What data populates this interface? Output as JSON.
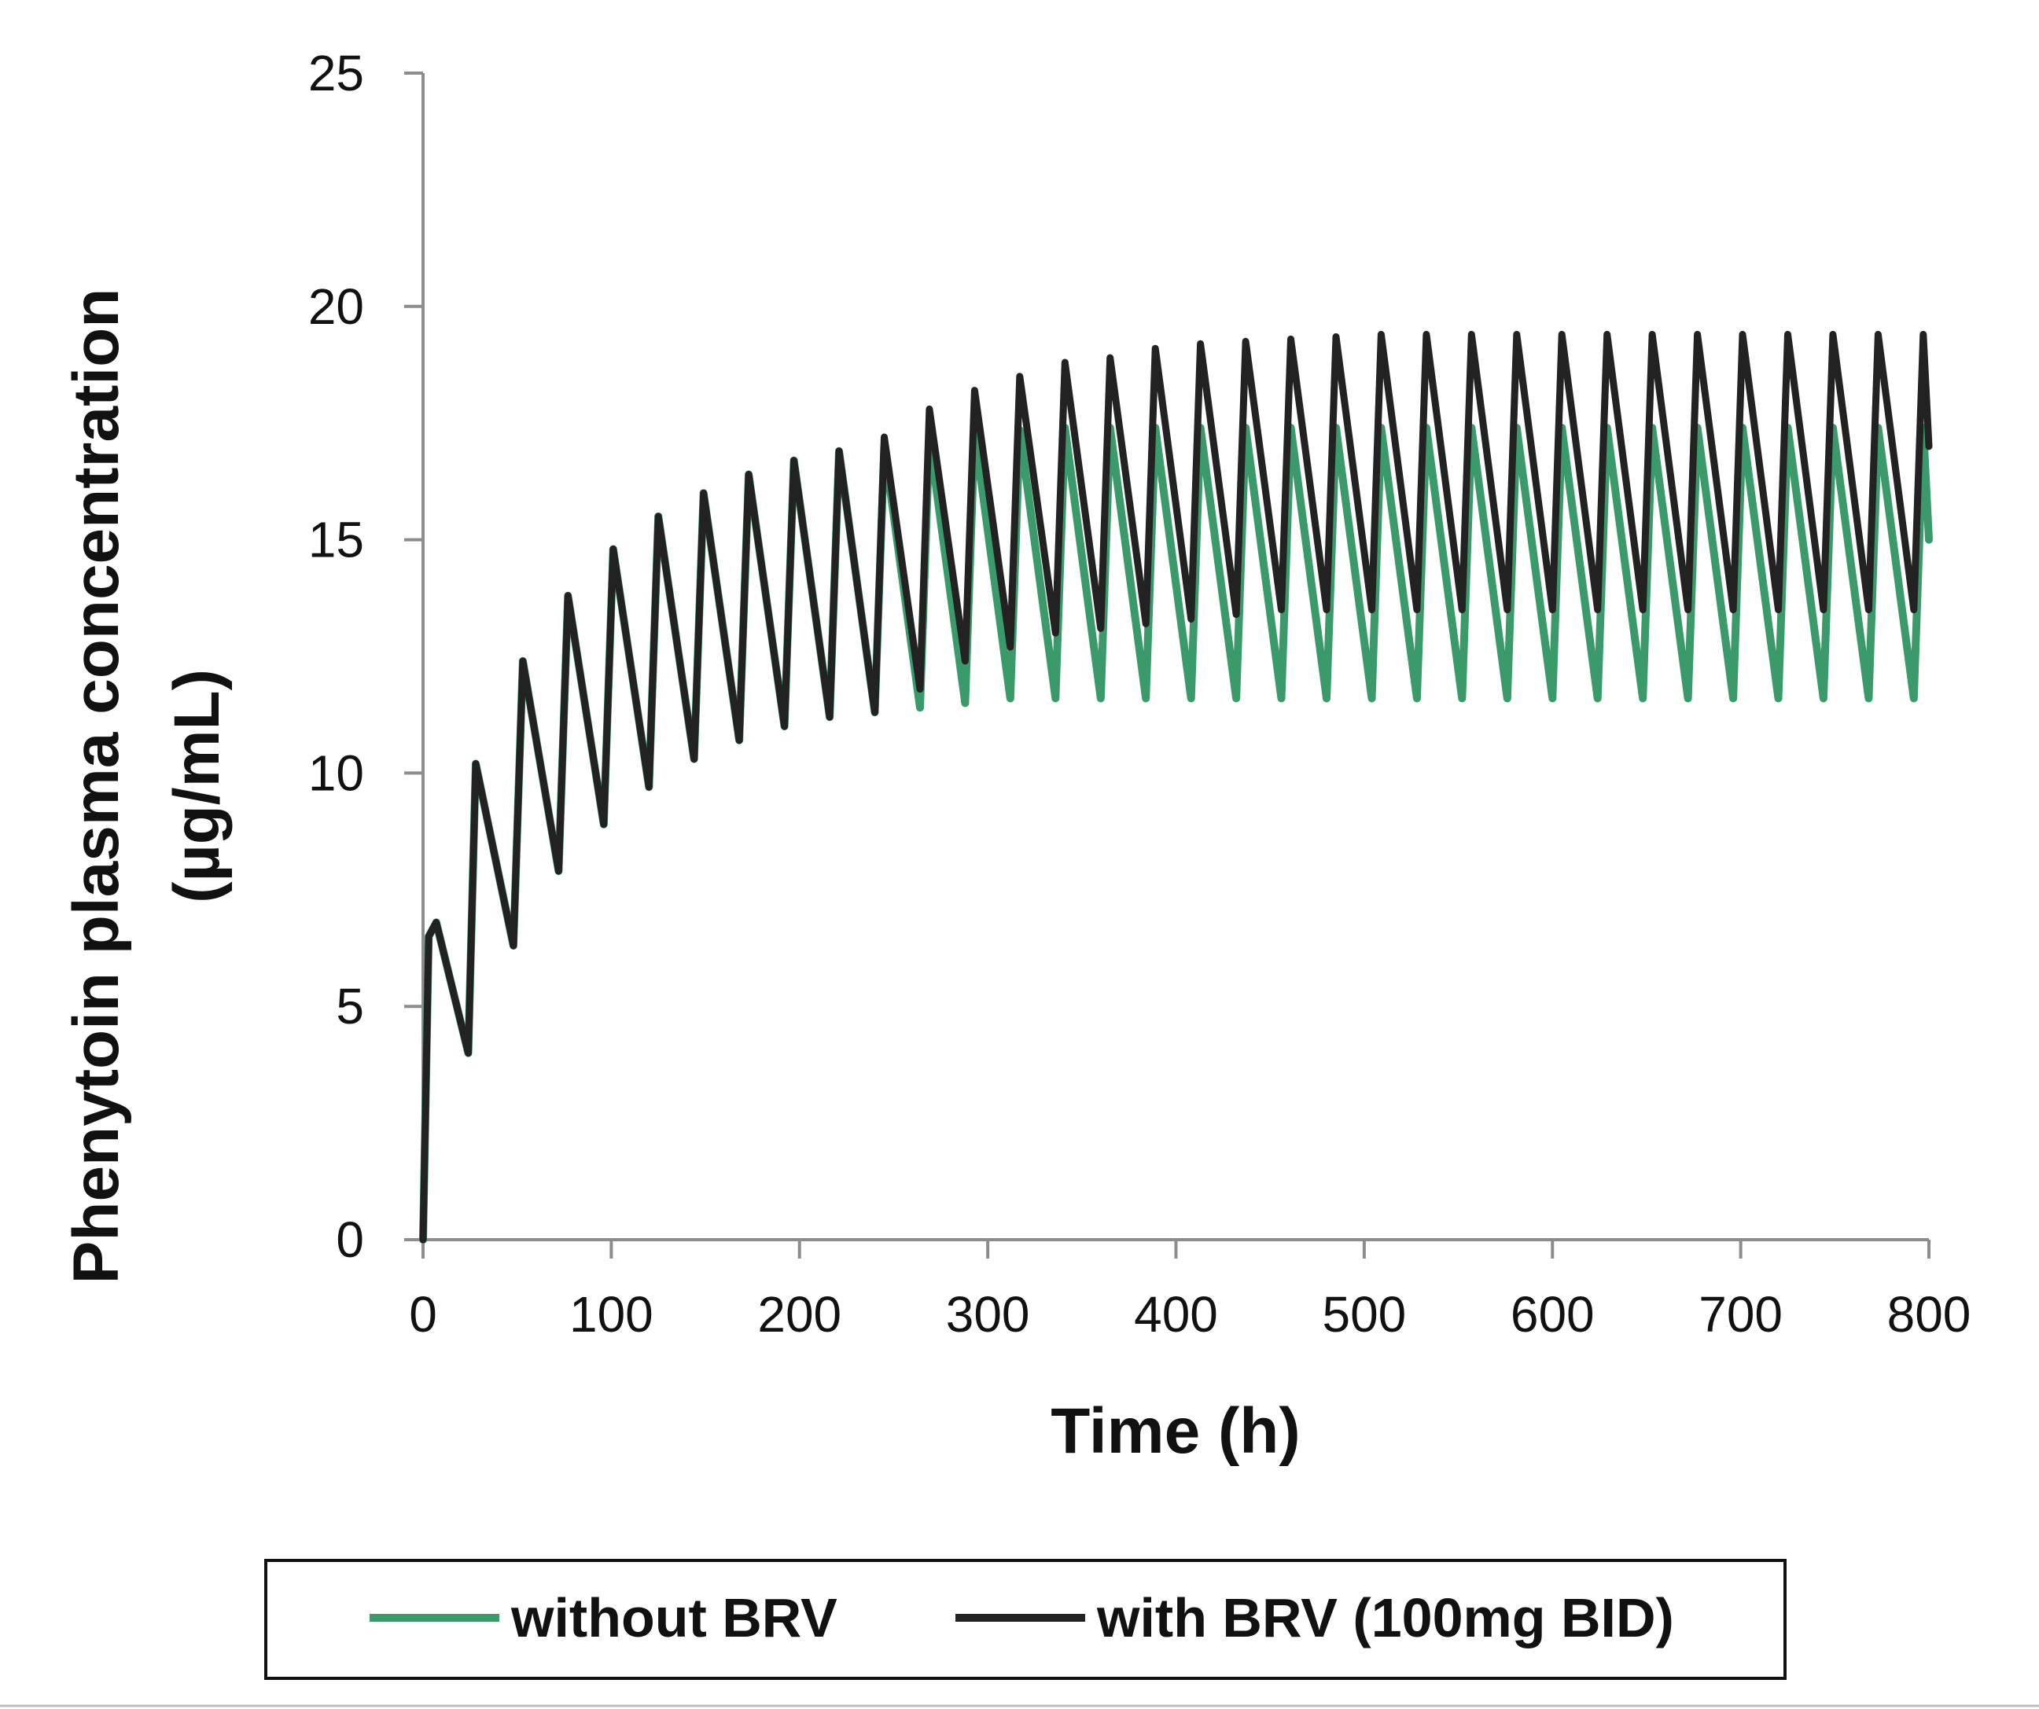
{
  "chart_data": {
    "type": "line",
    "title": "",
    "xlabel": "Time  (h)",
    "ylabel_line1": "Phenytoin plasma concentration",
    "ylabel_line2": "(µg/mL)",
    "xlim": [
      0,
      800
    ],
    "ylim": [
      0,
      25
    ],
    "x_ticks": [
      0,
      100,
      200,
      300,
      400,
      500,
      600,
      700,
      800
    ],
    "y_ticks": [
      0,
      5,
      10,
      15,
      20,
      25
    ],
    "x_tick_labels": [
      "0",
      "100",
      "200",
      "300",
      "400",
      "500",
      "600",
      "700",
      "800"
    ],
    "y_tick_labels": [
      "0",
      "5",
      "10",
      "15",
      "20",
      "25"
    ],
    "grid": false,
    "legend_position": "bottom",
    "series": [
      {
        "name": "without BRV",
        "color": "#3a9a6a",
        "description": "simulated twice-daily dosing; peaks/troughs per dosing cycle",
        "points": [
          [
            0,
            0
          ],
          [
            3,
            6.5
          ],
          [
            7,
            6.8
          ],
          [
            24,
            4
          ],
          [
            28,
            10.2
          ],
          [
            48,
            6.3
          ],
          [
            53,
            12.4
          ],
          [
            72,
            7.9
          ],
          [
            77,
            13.8
          ],
          [
            96,
            8.9
          ],
          [
            101,
            14.8
          ],
          [
            120,
            9.7
          ],
          [
            125,
            15.5
          ],
          [
            144,
            10.3
          ],
          [
            149,
            16.0
          ],
          [
            168,
            10.7
          ],
          [
            173,
            16.4
          ],
          [
            192,
            11.0
          ],
          [
            197,
            16.7
          ],
          [
            216,
            11.2
          ],
          [
            221,
            16.9
          ],
          [
            240,
            11.3
          ],
          [
            245,
            17.0
          ],
          [
            264,
            11.4
          ],
          [
            269,
            17.2
          ],
          [
            288,
            11.5
          ],
          [
            293,
            17.3
          ],
          [
            312,
            11.6
          ],
          [
            317,
            17.35
          ],
          [
            336,
            11.6
          ],
          [
            341,
            17.4
          ],
          [
            360,
            11.6
          ],
          [
            365,
            17.4
          ],
          [
            384,
            11.6
          ],
          [
            389,
            17.4
          ],
          [
            408,
            11.6
          ],
          [
            413,
            17.4
          ],
          [
            432,
            11.6
          ],
          [
            437,
            17.4
          ],
          [
            456,
            11.6
          ],
          [
            461,
            17.4
          ],
          [
            480,
            11.6
          ],
          [
            485,
            17.4
          ],
          [
            504,
            11.6
          ],
          [
            509,
            17.4
          ],
          [
            528,
            11.6
          ],
          [
            533,
            17.4
          ],
          [
            552,
            11.6
          ],
          [
            557,
            17.4
          ],
          [
            576,
            11.6
          ],
          [
            581,
            17.4
          ],
          [
            600,
            11.6
          ],
          [
            605,
            17.4
          ],
          [
            624,
            11.6
          ],
          [
            629,
            17.4
          ],
          [
            648,
            11.6
          ],
          [
            653,
            17.4
          ],
          [
            672,
            11.6
          ],
          [
            677,
            17.4
          ],
          [
            696,
            11.6
          ],
          [
            701,
            17.4
          ],
          [
            720,
            11.6
          ],
          [
            725,
            17.4
          ],
          [
            744,
            11.6
          ],
          [
            749,
            17.4
          ],
          [
            768,
            11.6
          ],
          [
            773,
            17.4
          ],
          [
            792,
            11.6
          ],
          [
            797,
            17.4
          ],
          [
            800,
            15.0
          ]
        ]
      },
      {
        "name": "with BRV (100mg BID)",
        "color": "#222222",
        "description": "simulated twice-daily dosing with brivaracetam co-administration",
        "points": [
          [
            0,
            0
          ],
          [
            3,
            6.5
          ],
          [
            7,
            6.8
          ],
          [
            24,
            4
          ],
          [
            28,
            10.2
          ],
          [
            48,
            6.3
          ],
          [
            53,
            12.4
          ],
          [
            72,
            7.9
          ],
          [
            77,
            13.8
          ],
          [
            96,
            8.9
          ],
          [
            101,
            14.8
          ],
          [
            120,
            9.7
          ],
          [
            125,
            15.5
          ],
          [
            144,
            10.3
          ],
          [
            149,
            16.0
          ],
          [
            168,
            10.7
          ],
          [
            173,
            16.4
          ],
          [
            192,
            11.0
          ],
          [
            197,
            16.7
          ],
          [
            216,
            11.2
          ],
          [
            221,
            16.9
          ],
          [
            240,
            11.3
          ],
          [
            245,
            17.2
          ],
          [
            264,
            11.8
          ],
          [
            269,
            17.8
          ],
          [
            288,
            12.4
          ],
          [
            293,
            18.2
          ],
          [
            312,
            12.7
          ],
          [
            317,
            18.5
          ],
          [
            336,
            13.0
          ],
          [
            341,
            18.8
          ],
          [
            360,
            13.1
          ],
          [
            365,
            18.9
          ],
          [
            384,
            13.2
          ],
          [
            389,
            19.1
          ],
          [
            408,
            13.3
          ],
          [
            413,
            19.2
          ],
          [
            432,
            13.4
          ],
          [
            437,
            19.25
          ],
          [
            456,
            13.5
          ],
          [
            461,
            19.3
          ],
          [
            480,
            13.5
          ],
          [
            485,
            19.35
          ],
          [
            504,
            13.5
          ],
          [
            509,
            19.4
          ],
          [
            528,
            13.5
          ],
          [
            533,
            19.4
          ],
          [
            552,
            13.5
          ],
          [
            557,
            19.4
          ],
          [
            576,
            13.5
          ],
          [
            581,
            19.4
          ],
          [
            600,
            13.5
          ],
          [
            605,
            19.4
          ],
          [
            624,
            13.5
          ],
          [
            629,
            19.4
          ],
          [
            648,
            13.5
          ],
          [
            653,
            19.4
          ],
          [
            672,
            13.5
          ],
          [
            677,
            19.4
          ],
          [
            696,
            13.5
          ],
          [
            701,
            19.4
          ],
          [
            720,
            13.5
          ],
          [
            725,
            19.4
          ],
          [
            744,
            13.5
          ],
          [
            749,
            19.4
          ],
          [
            768,
            13.5
          ],
          [
            773,
            19.4
          ],
          [
            792,
            13.5
          ],
          [
            797,
            19.4
          ],
          [
            800,
            17.0
          ]
        ]
      }
    ]
  },
  "legend": {
    "items": [
      {
        "label": "without BRV",
        "color": "#3a9a6a"
      },
      {
        "label": "with BRV (100mg BID)",
        "color": "#222222"
      }
    ]
  }
}
